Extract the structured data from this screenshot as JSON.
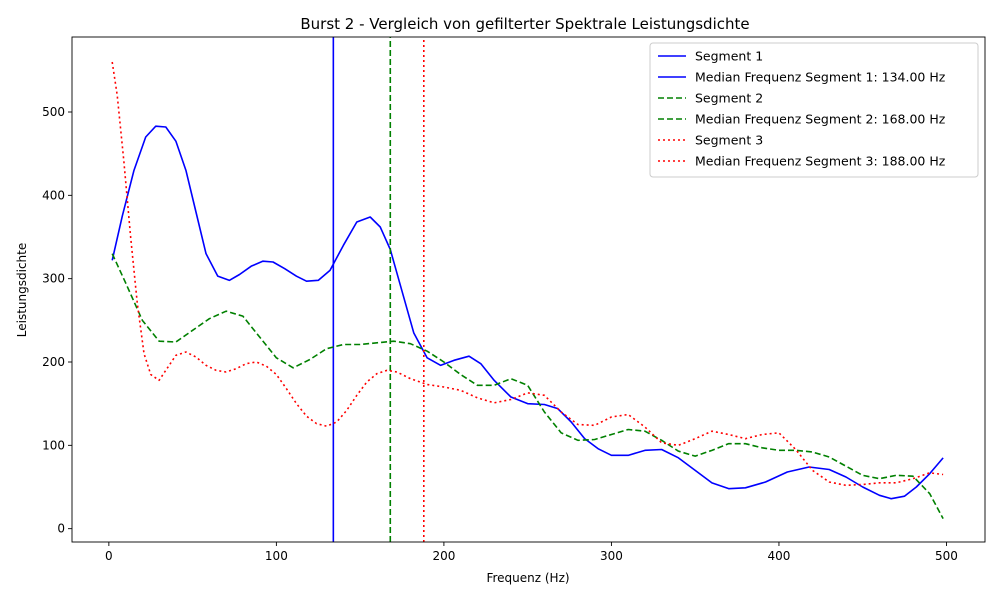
{
  "chart_data": {
    "type": "line",
    "title": "Burst 2 - Vergleich von gefilterter Spektrale Leistungsdichte",
    "xlabel": "Frequenz (Hz)",
    "ylabel": "Leistungsdichte",
    "xlim": [
      -22,
      523
    ],
    "ylim": [
      -16,
      590
    ],
    "xticks": [
      0,
      100,
      200,
      300,
      400,
      500
    ],
    "yticks": [
      0,
      100,
      200,
      300,
      400,
      500
    ],
    "grid": false,
    "legend_position": "top-right",
    "series": [
      {
        "name": "Segment 1",
        "color": "#0000ff",
        "dash": "solid",
        "x": [
          2,
          8,
          15,
          22,
          28,
          34,
          40,
          46,
          52,
          58,
          65,
          72,
          78,
          85,
          92,
          98,
          105,
          112,
          118,
          125,
          132,
          140,
          148,
          156,
          162,
          168,
          175,
          182,
          190,
          198,
          206,
          215,
          222,
          230,
          240,
          250,
          260,
          268,
          276,
          284,
          292,
          300,
          310,
          320,
          330,
          340,
          350,
          360,
          370,
          380,
          392,
          405,
          418,
          430,
          440,
          450,
          460,
          467,
          475,
          482,
          490,
          498
        ],
        "y": [
          322,
          375,
          430,
          470,
          483,
          482,
          465,
          430,
          380,
          330,
          303,
          298,
          305,
          315,
          321,
          320,
          312,
          303,
          297,
          298,
          310,
          340,
          368,
          374,
          362,
          335,
          285,
          235,
          205,
          196,
          202,
          207,
          198,
          178,
          158,
          150,
          149,
          144,
          128,
          108,
          96,
          88,
          88,
          94,
          95,
          85,
          70,
          55,
          48,
          49,
          56,
          68,
          74,
          71,
          62,
          50,
          40,
          36,
          39,
          50,
          66,
          85
        ]
      },
      {
        "name": "Median Frequenz Segment 1: 134.00 Hz",
        "color": "#0000ff",
        "dash": "solid",
        "x": [
          134,
          134
        ],
        "y": [
          -16,
          590
        ]
      },
      {
        "name": "Segment 2",
        "color": "#008000",
        "dash": "dashed",
        "x": [
          2,
          10,
          20,
          30,
          40,
          50,
          60,
          70,
          80,
          90,
          100,
          110,
          120,
          130,
          140,
          150,
          160,
          170,
          180,
          190,
          200,
          210,
          220,
          230,
          240,
          250,
          260,
          270,
          280,
          290,
          300,
          310,
          320,
          330,
          340,
          350,
          360,
          370,
          380,
          390,
          400,
          410,
          420,
          430,
          440,
          450,
          460,
          470,
          480,
          490,
          498
        ],
        "y": [
          330,
          295,
          250,
          225,
          224,
          238,
          252,
          261,
          255,
          230,
          205,
          193,
          203,
          216,
          221,
          221,
          223,
          225,
          222,
          213,
          200,
          185,
          172,
          172,
          180,
          172,
          140,
          115,
          106,
          107,
          113,
          119,
          117,
          106,
          93,
          87,
          94,
          102,
          102,
          97,
          94,
          94,
          92,
          86,
          75,
          64,
          60,
          64,
          63,
          42,
          12
        ]
      },
      {
        "name": "Median Frequenz Segment 2: 168.00 Hz",
        "color": "#008000",
        "dash": "dashed",
        "x": [
          168,
          168
        ],
        "y": [
          -16,
          590
        ]
      },
      {
        "name": "Segment 3",
        "color": "#ff0000",
        "dash": "dotted",
        "x": [
          2,
          5,
          9,
          13,
          17,
          21,
          25,
          30,
          35,
          40,
          46,
          52,
          58,
          64,
          70,
          76,
          82,
          88,
          94,
          100,
          106,
          112,
          118,
          124,
          130,
          136,
          142,
          148,
          154,
          160,
          166,
          172,
          180,
          190,
          200,
          210,
          220,
          230,
          240,
          250,
          260,
          270,
          280,
          290,
          300,
          310,
          320,
          330,
          340,
          350,
          360,
          370,
          380,
          390,
          400,
          410,
          420,
          430,
          440,
          450,
          460,
          470,
          480,
          490,
          498
        ],
        "y": [
          560,
          520,
          440,
          350,
          270,
          210,
          185,
          178,
          193,
          208,
          212,
          206,
          196,
          190,
          188,
          192,
          198,
          200,
          195,
          185,
          168,
          150,
          135,
          126,
          123,
          128,
          142,
          160,
          176,
          186,
          190,
          188,
          180,
          173,
          170,
          166,
          157,
          151,
          155,
          163,
          160,
          140,
          125,
          124,
          134,
          137,
          122,
          103,
          100,
          108,
          117,
          113,
          108,
          113,
          115,
          95,
          70,
          56,
          52,
          53,
          55,
          55,
          60,
          67,
          65
        ]
      },
      {
        "name": "Median Frequenz Segment 3: 188.00 Hz",
        "color": "#ff0000",
        "dash": "dotted",
        "x": [
          188,
          188
        ],
        "y": [
          -16,
          590
        ]
      }
    ]
  }
}
